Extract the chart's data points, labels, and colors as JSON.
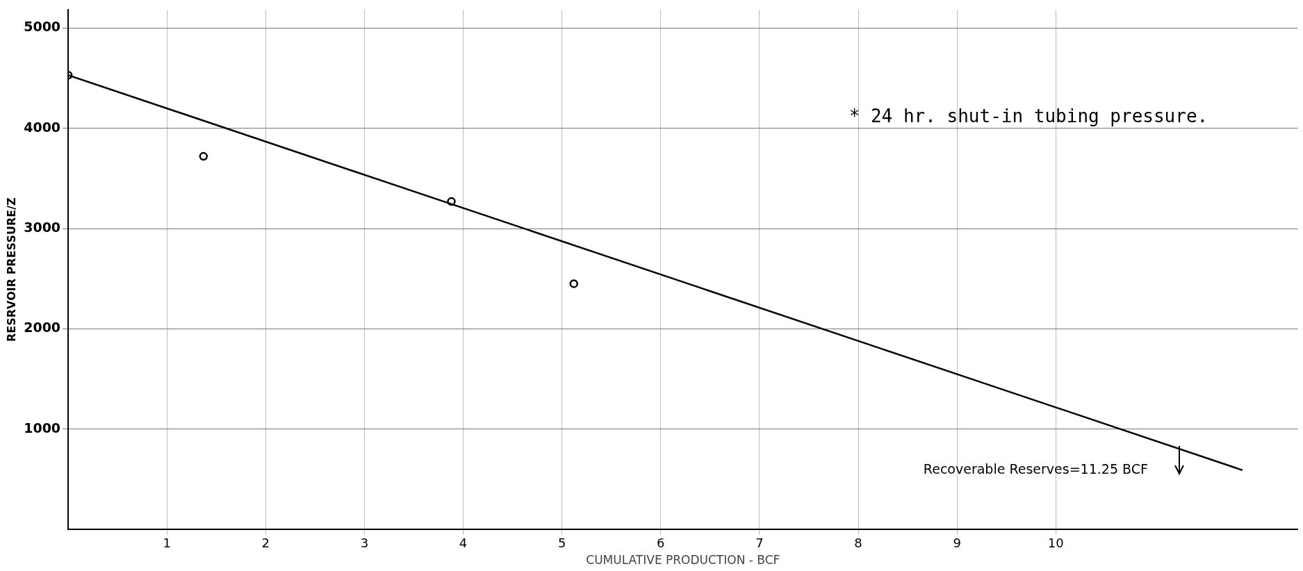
{
  "chart_data": {
    "type": "scatter",
    "xlabel": "CUMULATIVE PRODUCTION - BCF",
    "ylabel": "RESRVOIR PRESSURE/Z",
    "series": [
      {
        "type": "scatter",
        "color": "#000000",
        "x": [
          0,
          1.37,
          3.88,
          5.12
        ],
        "values": [
          4530,
          3720,
          3270,
          2450
        ],
        "marker": "circle"
      },
      {
        "type": "line",
        "color": "#000000",
        "x": [
          0,
          11.89
        ],
        "values": [
          4530,
          590
        ],
        "marker": "none"
      }
    ],
    "xlim": [
      0,
      12.45
    ],
    "xticks": [
      1,
      2,
      3,
      4,
      5,
      6,
      7,
      8,
      9,
      10
    ],
    "ylim": [
      0,
      5180
    ],
    "yticks": [
      1000,
      2000,
      3000,
      4000,
      5000
    ],
    "grid": true,
    "legend": false,
    "annotations": [
      "* 24 hr. shut-in tubing pressure.",
      {
        "text": "Recoverable Reserves=11.25 BCF",
        "x": 11.25,
        "y": 830
      }
    ]
  }
}
